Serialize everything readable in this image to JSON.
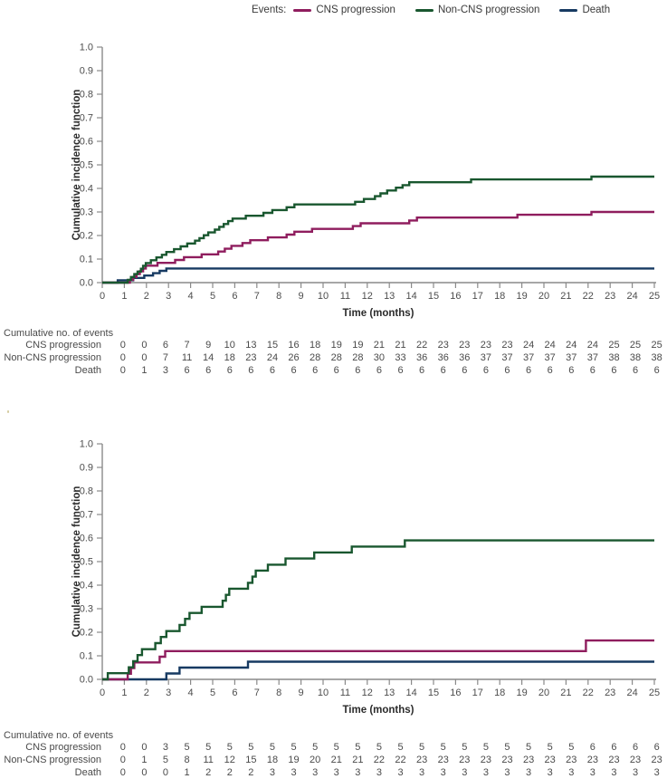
{
  "legend": {
    "label": "Events:",
    "items": [
      {
        "name": "CNS progression",
        "color": "#8F1D5E"
      },
      {
        "name": "Non-CNS progression",
        "color": "#19572F"
      },
      {
        "name": "Death",
        "color": "#173A62"
      }
    ]
  },
  "colors": {
    "axis": "#8a8a8a",
    "tick_text": "#4d4d4d",
    "axis_title": "#2b2b2b"
  },
  "chart_data": [
    {
      "type": "line",
      "step": true,
      "title": "",
      "xlabel": "Time (months)",
      "ylabel": "Cumulative incidence function",
      "xlim": [
        0,
        25
      ],
      "ylim": [
        0,
        1.0
      ],
      "xticks": [
        0,
        1,
        2,
        3,
        4,
        5,
        6,
        7,
        8,
        9,
        10,
        11,
        12,
        13,
        14,
        15,
        16,
        17,
        18,
        19,
        20,
        21,
        22,
        23,
        24,
        25
      ],
      "yticks": [
        0.0,
        0.1,
        0.2,
        0.3,
        0.4,
        0.5,
        0.6,
        0.7,
        0.8,
        0.9,
        1.0
      ],
      "grid": false,
      "legend_position": "top",
      "series": [
        {
          "name": "CNS progression",
          "color": "#8F1D5E",
          "steps": [
            [
              1.25,
              0.012
            ],
            [
              1.4,
              0.024
            ],
            [
              1.55,
              0.036
            ],
            [
              1.7,
              0.048
            ],
            [
              1.85,
              0.06
            ],
            [
              1.97,
              0.072
            ],
            [
              2.5,
              0.084
            ],
            [
              3.3,
              0.096
            ],
            [
              3.7,
              0.108
            ],
            [
              4.5,
              0.12
            ],
            [
              5.25,
              0.132
            ],
            [
              5.55,
              0.144
            ],
            [
              5.85,
              0.156
            ],
            [
              6.35,
              0.168
            ],
            [
              6.7,
              0.18
            ],
            [
              7.5,
              0.192
            ],
            [
              8.35,
              0.204
            ],
            [
              8.7,
              0.216
            ],
            [
              9.5,
              0.228
            ],
            [
              11.35,
              0.24
            ],
            [
              11.7,
              0.252
            ],
            [
              13.9,
              0.264
            ],
            [
              14.25,
              0.276
            ],
            [
              18.8,
              0.288
            ],
            [
              22.15,
              0.3
            ]
          ]
        },
        {
          "name": "Non-CNS progression",
          "color": "#19572F",
          "steps": [
            [
              1.15,
              0.012
            ],
            [
              1.3,
              0.024
            ],
            [
              1.45,
              0.036
            ],
            [
              1.6,
              0.047
            ],
            [
              1.75,
              0.059
            ],
            [
              1.85,
              0.071
            ],
            [
              1.97,
              0.083
            ],
            [
              2.2,
              0.095
            ],
            [
              2.45,
              0.107
            ],
            [
              2.7,
              0.118
            ],
            [
              2.9,
              0.13
            ],
            [
              3.25,
              0.142
            ],
            [
              3.55,
              0.154
            ],
            [
              3.85,
              0.166
            ],
            [
              4.2,
              0.178
            ],
            [
              4.4,
              0.189
            ],
            [
              4.6,
              0.201
            ],
            [
              4.8,
              0.213
            ],
            [
              5.1,
              0.225
            ],
            [
              5.3,
              0.237
            ],
            [
              5.5,
              0.249
            ],
            [
              5.7,
              0.261
            ],
            [
              5.9,
              0.272
            ],
            [
              6.5,
              0.284
            ],
            [
              7.3,
              0.296
            ],
            [
              7.7,
              0.308
            ],
            [
              8.35,
              0.32
            ],
            [
              8.7,
              0.332
            ],
            [
              11.45,
              0.343
            ],
            [
              11.85,
              0.355
            ],
            [
              12.35,
              0.367
            ],
            [
              12.6,
              0.379
            ],
            [
              12.9,
              0.391
            ],
            [
              13.3,
              0.403
            ],
            [
              13.6,
              0.414
            ],
            [
              13.9,
              0.426
            ],
            [
              16.7,
              0.438
            ],
            [
              22.15,
              0.45
            ]
          ]
        },
        {
          "name": "Death",
          "color": "#173A62",
          "steps": [
            [
              0.7,
              0.01
            ],
            [
              1.4,
              0.02
            ],
            [
              1.9,
              0.03
            ],
            [
              2.3,
              0.04
            ],
            [
              2.6,
              0.05
            ],
            [
              2.9,
              0.06
            ]
          ]
        }
      ],
      "events_table": {
        "title": "Cumulative no. of events",
        "months": [
          0,
          1,
          2,
          3,
          4,
          5,
          6,
          7,
          8,
          9,
          10,
          11,
          12,
          13,
          14,
          15,
          16,
          17,
          18,
          19,
          20,
          21,
          22,
          23,
          24,
          25
        ],
        "rows": [
          {
            "label": "CNS progression",
            "values": [
              0,
              0,
              6,
              7,
              9,
              10,
              13,
              15,
              16,
              18,
              19,
              19,
              21,
              21,
              22,
              23,
              23,
              23,
              23,
              24,
              24,
              24,
              24,
              25,
              25,
              25
            ]
          },
          {
            "label": "Non-CNS progression",
            "values": [
              0,
              0,
              7,
              11,
              14,
              18,
              23,
              24,
              26,
              28,
              28,
              28,
              30,
              33,
              36,
              36,
              36,
              37,
              37,
              37,
              37,
              37,
              37,
              38,
              38,
              38
            ]
          },
          {
            "label": "Death",
            "values": [
              0,
              1,
              3,
              6,
              6,
              6,
              6,
              6,
              6,
              6,
              6,
              6,
              6,
              6,
              6,
              6,
              6,
              6,
              6,
              6,
              6,
              6,
              6,
              6,
              6,
              6
            ]
          }
        ]
      }
    },
    {
      "type": "line",
      "step": true,
      "title": "",
      "xlabel": "Time (months)",
      "ylabel": "Cumulative incidence function",
      "xlim": [
        0,
        25
      ],
      "ylim": [
        0,
        1.0
      ],
      "xticks": [
        0,
        1,
        2,
        3,
        4,
        5,
        6,
        7,
        8,
        9,
        10,
        11,
        12,
        13,
        14,
        15,
        16,
        17,
        18,
        19,
        20,
        21,
        22,
        23,
        24,
        25
      ],
      "yticks": [
        0.0,
        0.1,
        0.2,
        0.3,
        0.4,
        0.5,
        0.6,
        0.7,
        0.8,
        0.9,
        1.0
      ],
      "grid": false,
      "legend_position": "top",
      "series": [
        {
          "name": "CNS progression",
          "color": "#8F1D5E",
          "steps": [
            [
              1.15,
              0.024
            ],
            [
              1.3,
              0.048
            ],
            [
              1.45,
              0.072
            ],
            [
              2.6,
              0.096
            ],
            [
              2.85,
              0.12
            ],
            [
              21.9,
              0.165
            ]
          ]
        },
        {
          "name": "Non-CNS progression",
          "color": "#19572F",
          "steps": [
            [
              0.25,
              0.026
            ],
            [
              1.2,
              0.051
            ],
            [
              1.4,
              0.077
            ],
            [
              1.6,
              0.103
            ],
            [
              1.8,
              0.128
            ],
            [
              2.4,
              0.154
            ],
            [
              2.65,
              0.18
            ],
            [
              2.9,
              0.205
            ],
            [
              3.5,
              0.231
            ],
            [
              3.75,
              0.257
            ],
            [
              3.95,
              0.282
            ],
            [
              4.5,
              0.308
            ],
            [
              5.45,
              0.334
            ],
            [
              5.6,
              0.359
            ],
            [
              5.75,
              0.385
            ],
            [
              6.6,
              0.41
            ],
            [
              6.8,
              0.436
            ],
            [
              6.95,
              0.462
            ],
            [
              7.5,
              0.487
            ],
            [
              8.3,
              0.513
            ],
            [
              9.6,
              0.539
            ],
            [
              11.3,
              0.564
            ],
            [
              13.7,
              0.59
            ]
          ]
        },
        {
          "name": "Death",
          "color": "#173A62",
          "steps": [
            [
              2.9,
              0.025
            ],
            [
              3.5,
              0.05
            ],
            [
              6.6,
              0.075
            ]
          ]
        }
      ],
      "events_table": {
        "title": "Cumulative no. of events",
        "months": [
          0,
          1,
          2,
          3,
          4,
          5,
          6,
          7,
          8,
          9,
          10,
          11,
          12,
          13,
          14,
          15,
          16,
          17,
          18,
          19,
          20,
          21,
          22,
          23,
          24,
          25
        ],
        "rows": [
          {
            "label": "CNS progression",
            "values": [
              0,
              0,
              3,
              5,
              5,
              5,
              5,
              5,
              5,
              5,
              5,
              5,
              5,
              5,
              5,
              5,
              5,
              5,
              5,
              5,
              5,
              5,
              6,
              6,
              6,
              6
            ]
          },
          {
            "label": "Non-CNS progression",
            "values": [
              0,
              1,
              5,
              8,
              11,
              12,
              15,
              18,
              19,
              20,
              21,
              21,
              22,
              22,
              23,
              23,
              23,
              23,
              23,
              23,
              23,
              23,
              23,
              23,
              23,
              23
            ]
          },
          {
            "label": "Death",
            "values": [
              0,
              0,
              0,
              1,
              2,
              2,
              2,
              3,
              3,
              3,
              3,
              3,
              3,
              3,
              3,
              3,
              3,
              3,
              3,
              3,
              3,
              3,
              3,
              3,
              3,
              3
            ]
          }
        ]
      }
    }
  ]
}
